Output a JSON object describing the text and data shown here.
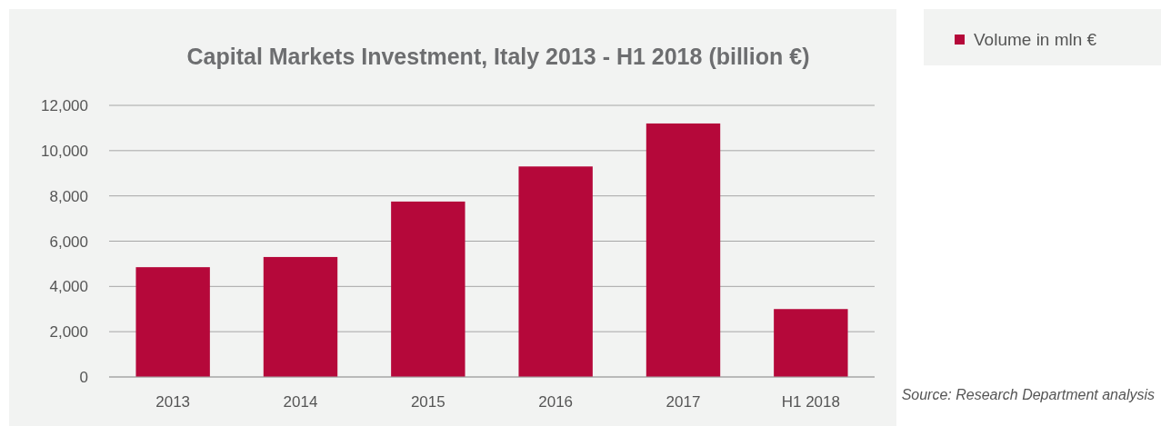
{
  "chart_data": {
    "type": "bar",
    "title": "Capital Markets Investment, Italy 2013 - H1 2018 (billion €)",
    "categories": [
      "2013",
      "2014",
      "2015",
      "2016",
      "2017",
      "H1 2018"
    ],
    "series": [
      {
        "name": "Volume in mln €",
        "color": "#b5083a",
        "values": [
          4850,
          5300,
          7750,
          9300,
          11200,
          3000
        ]
      }
    ],
    "ylim": [
      0,
      12000
    ],
    "yticks": [
      {
        "value": 0,
        "label": "0"
      },
      {
        "value": 2000,
        "label": "2,000"
      },
      {
        "value": 4000,
        "label": "4,000"
      },
      {
        "value": 6000,
        "label": "6,000"
      },
      {
        "value": 8000,
        "label": "8,000"
      },
      {
        "value": 10000,
        "label": "10,000"
      },
      {
        "value": 12000,
        "label": "12,000"
      }
    ],
    "grid": "y",
    "legend": "top right",
    "annotations": [
      "Source: Research Department analysis"
    ]
  }
}
